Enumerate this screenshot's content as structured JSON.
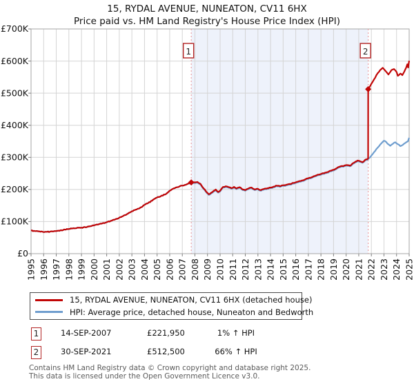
{
  "title": "15, RYDAL AVENUE, NUNEATON, CV11 6HX",
  "subtitle": "Price paid vs. HM Land Registry's House Price Index (HPI)",
  "legend": {
    "items": [
      {
        "label": "15, RYDAL AVENUE, NUNEATON, CV11 6HX (detached house)",
        "color": "#c10505"
      },
      {
        "label": "HPI: Average price, detached house, Nuneaton and Bedworth",
        "color": "#6e9dce"
      }
    ]
  },
  "annotations": [
    {
      "num": "1",
      "date": "14-SEP-2007",
      "price": "£221,950",
      "hpi_change": "1% ↑ HPI"
    },
    {
      "num": "2",
      "date": "30-SEP-2021",
      "price": "£512,500",
      "hpi_change": "66% ↑ HPI"
    }
  ],
  "footer": {
    "line1": "Contains HM Land Registry data © Crown copyright and database right 2025.",
    "line2": "This data is licensed under the Open Government Licence v3.0."
  },
  "chart_data": {
    "type": "line",
    "unit": "GBP thousands",
    "xlim": [
      1995,
      2025
    ],
    "ylim": [
      0,
      700
    ],
    "x_ticks": [
      1995,
      1996,
      1997,
      1998,
      1999,
      2000,
      2001,
      2002,
      2003,
      2004,
      2005,
      2006,
      2007,
      2008,
      2009,
      2010,
      2011,
      2012,
      2013,
      2014,
      2015,
      2016,
      2017,
      2018,
      2019,
      2020,
      2021,
      2022,
      2023,
      2024,
      2025
    ],
    "y_ticks": [
      {
        "value": 0,
        "label": "£0"
      },
      {
        "value": 100,
        "label": "£100K"
      },
      {
        "value": 200,
        "label": "£200K"
      },
      {
        "value": 300,
        "label": "£300K"
      },
      {
        "value": 400,
        "label": "£400K"
      },
      {
        "value": 500,
        "label": "£500K"
      },
      {
        "value": 600,
        "label": "£600K"
      },
      {
        "value": 700,
        "label": "£700K"
      }
    ],
    "shaded_region": {
      "from": 2007.71,
      "to": 2021.75,
      "color": "#eef2fb"
    },
    "colors": {
      "grid": "#d4d4d4",
      "border": "#a6a6a6",
      "tick": "#808080",
      "sale_dash_line": "#e89296"
    },
    "markers": [
      {
        "num": "1",
        "year": 2007.71,
        "value": 221.95
      },
      {
        "num": "2",
        "year": 2021.75,
        "value": 512.5
      }
    ],
    "series": [
      {
        "name": "price-paid-indexed",
        "color": "#c10505",
        "width": 2.2,
        "points": [
          [
            1995.0,
            72
          ],
          [
            1995.3,
            70.5
          ],
          [
            1995.6,
            69.5
          ],
          [
            1995.9,
            68.5
          ],
          [
            1996.2,
            68
          ],
          [
            1996.5,
            68.5
          ],
          [
            1996.8,
            69.5
          ],
          [
            1997.1,
            71
          ],
          [
            1997.4,
            73
          ],
          [
            1997.7,
            75
          ],
          [
            1998.0,
            77
          ],
          [
            1998.3,
            78.5
          ],
          [
            1998.6,
            79.5
          ],
          [
            1999.0,
            81
          ],
          [
            1999.3,
            82.5
          ],
          [
            1999.6,
            84.5
          ],
          [
            2000.0,
            88
          ],
          [
            2000.3,
            90.5
          ],
          [
            2000.6,
            93.5
          ],
          [
            2001.0,
            98
          ],
          [
            2001.3,
            101.5
          ],
          [
            2001.6,
            105.5
          ],
          [
            2002.0,
            112
          ],
          [
            2002.3,
            117
          ],
          [
            2002.6,
            123
          ],
          [
            2003.0,
            132
          ],
          [
            2003.3,
            137
          ],
          [
            2003.6,
            141
          ],
          [
            2004.0,
            152
          ],
          [
            2004.3,
            158
          ],
          [
            2004.6,
            165
          ],
          [
            2005.0,
            175
          ],
          [
            2005.3,
            179
          ],
          [
            2005.6,
            184
          ],
          [
            2005.8,
            189
          ],
          [
            2006.0,
            196
          ],
          [
            2006.2,
            201
          ],
          [
            2006.4,
            204
          ],
          [
            2006.6,
            207
          ],
          [
            2006.8,
            210
          ],
          [
            2007.0,
            212
          ],
          [
            2007.2,
            214
          ],
          [
            2007.45,
            218
          ],
          [
            2007.71,
            221.95
          ],
          [
            2008.0,
            222
          ],
          [
            2008.2,
            223.5
          ],
          [
            2008.45,
            217
          ],
          [
            2008.7,
            203
          ],
          [
            2008.9,
            193
          ],
          [
            2009.1,
            185
          ],
          [
            2009.3,
            190
          ],
          [
            2009.5,
            196
          ],
          [
            2009.65,
            200
          ],
          [
            2009.85,
            192
          ],
          [
            2010.0,
            196
          ],
          [
            2010.2,
            207
          ],
          [
            2010.45,
            210
          ],
          [
            2010.7,
            207
          ],
          [
            2010.9,
            204
          ],
          [
            2011.1,
            208
          ],
          [
            2011.3,
            203
          ],
          [
            2011.55,
            207
          ],
          [
            2011.8,
            200
          ],
          [
            2012.0,
            198
          ],
          [
            2012.25,
            203
          ],
          [
            2012.5,
            206
          ],
          [
            2012.75,
            200
          ],
          [
            2013.0,
            202
          ],
          [
            2013.25,
            198
          ],
          [
            2013.5,
            202
          ],
          [
            2013.75,
            204
          ],
          [
            2014.0,
            206
          ],
          [
            2014.25,
            209
          ],
          [
            2014.5,
            212
          ],
          [
            2014.75,
            210
          ],
          [
            2015.0,
            213
          ],
          [
            2015.5,
            217
          ],
          [
            2016.0,
            222
          ],
          [
            2016.5,
            228
          ],
          [
            2017.0,
            235
          ],
          [
            2017.5,
            242
          ],
          [
            2018.0,
            248
          ],
          [
            2018.5,
            254
          ],
          [
            2019.0,
            261
          ],
          [
            2019.4,
            270
          ],
          [
            2019.7,
            273
          ],
          [
            2020.0,
            276
          ],
          [
            2020.3,
            274
          ],
          [
            2020.6,
            283
          ],
          [
            2020.9,
            290
          ],
          [
            2021.1,
            288
          ],
          [
            2021.3,
            285
          ],
          [
            2021.5,
            292
          ],
          [
            2021.74,
            296
          ],
          [
            2021.75,
            512.5
          ],
          [
            2021.9,
            522
          ],
          [
            2022.1,
            535
          ],
          [
            2022.3,
            548
          ],
          [
            2022.5,
            562
          ],
          [
            2022.7,
            572
          ],
          [
            2022.9,
            579
          ],
          [
            2023.1,
            570
          ],
          [
            2023.35,
            558
          ],
          [
            2023.6,
            572
          ],
          [
            2023.8,
            575
          ],
          [
            2024.0,
            566
          ],
          [
            2024.1,
            554
          ],
          [
            2024.3,
            561
          ],
          [
            2024.45,
            556
          ],
          [
            2024.6,
            566
          ],
          [
            2024.75,
            578
          ],
          [
            2024.85,
            590
          ],
          [
            2024.92,
            580
          ],
          [
            2025.0,
            601
          ]
        ]
      },
      {
        "name": "hpi-average",
        "color": "#6e9dce",
        "width": 2.2,
        "points": [
          [
            1995.0,
            72
          ],
          [
            1995.3,
            70.5
          ],
          [
            1995.6,
            69.5
          ],
          [
            1995.9,
            68.5
          ],
          [
            1996.2,
            68
          ],
          [
            1996.5,
            68.5
          ],
          [
            1996.8,
            69.5
          ],
          [
            1997.1,
            71
          ],
          [
            1997.4,
            73
          ],
          [
            1997.7,
            75
          ],
          [
            1998.0,
            77
          ],
          [
            1998.3,
            78.5
          ],
          [
            1998.6,
            79.5
          ],
          [
            1999.0,
            81
          ],
          [
            1999.3,
            82.5
          ],
          [
            1999.6,
            84.5
          ],
          [
            2000.0,
            88
          ],
          [
            2000.3,
            90.5
          ],
          [
            2000.6,
            93.5
          ],
          [
            2001.0,
            98
          ],
          [
            2001.3,
            101.5
          ],
          [
            2001.6,
            105.5
          ],
          [
            2002.0,
            112
          ],
          [
            2002.3,
            117
          ],
          [
            2002.6,
            123
          ],
          [
            2003.0,
            132
          ],
          [
            2003.3,
            137
          ],
          [
            2003.6,
            141
          ],
          [
            2004.0,
            152
          ],
          [
            2004.3,
            158
          ],
          [
            2004.6,
            165
          ],
          [
            2005.0,
            175
          ],
          [
            2005.3,
            179
          ],
          [
            2005.6,
            184
          ],
          [
            2005.8,
            189
          ],
          [
            2006.0,
            196
          ],
          [
            2006.2,
            201
          ],
          [
            2006.4,
            204
          ],
          [
            2006.6,
            207
          ],
          [
            2006.8,
            210
          ],
          [
            2007.0,
            212
          ],
          [
            2007.2,
            214
          ],
          [
            2007.45,
            218
          ],
          [
            2007.71,
            219.8
          ],
          [
            2008.0,
            220
          ],
          [
            2008.2,
            221.5
          ],
          [
            2008.45,
            215
          ],
          [
            2008.7,
            201
          ],
          [
            2008.9,
            191
          ],
          [
            2009.1,
            183
          ],
          [
            2009.3,
            188
          ],
          [
            2009.5,
            194
          ],
          [
            2009.65,
            198
          ],
          [
            2009.85,
            190
          ],
          [
            2010.0,
            194
          ],
          [
            2010.2,
            205
          ],
          [
            2010.45,
            208
          ],
          [
            2010.7,
            205
          ],
          [
            2010.9,
            202
          ],
          [
            2011.1,
            206
          ],
          [
            2011.3,
            201
          ],
          [
            2011.55,
            205
          ],
          [
            2011.8,
            198
          ],
          [
            2012.0,
            196
          ],
          [
            2012.25,
            201
          ],
          [
            2012.5,
            204
          ],
          [
            2012.75,
            198
          ],
          [
            2013.0,
            200
          ],
          [
            2013.25,
            196
          ],
          [
            2013.5,
            200
          ],
          [
            2013.75,
            202
          ],
          [
            2014.0,
            204
          ],
          [
            2014.25,
            207
          ],
          [
            2014.5,
            210
          ],
          [
            2014.75,
            208
          ],
          [
            2015.0,
            211
          ],
          [
            2015.5,
            215
          ],
          [
            2016.0,
            220
          ],
          [
            2016.5,
            226
          ],
          [
            2017.0,
            233
          ],
          [
            2017.5,
            240
          ],
          [
            2018.0,
            246
          ],
          [
            2018.5,
            252
          ],
          [
            2019.0,
            259
          ],
          [
            2019.4,
            268
          ],
          [
            2019.7,
            271
          ],
          [
            2020.0,
            274
          ],
          [
            2020.3,
            272
          ],
          [
            2020.6,
            281
          ],
          [
            2020.9,
            288
          ],
          [
            2021.1,
            286
          ],
          [
            2021.3,
            283
          ],
          [
            2021.5,
            290
          ],
          [
            2021.74,
            294
          ],
          [
            2021.75,
            296
          ],
          [
            2021.9,
            300
          ],
          [
            2022.1,
            310
          ],
          [
            2022.3,
            320
          ],
          [
            2022.5,
            330
          ],
          [
            2022.7,
            340
          ],
          [
            2022.9,
            348
          ],
          [
            2023.0,
            352
          ],
          [
            2023.15,
            349
          ],
          [
            2023.3,
            342
          ],
          [
            2023.5,
            336
          ],
          [
            2023.7,
            342
          ],
          [
            2023.9,
            347
          ],
          [
            2024.1,
            341
          ],
          [
            2024.3,
            335
          ],
          [
            2024.5,
            339
          ],
          [
            2024.7,
            345
          ],
          [
            2024.9,
            350
          ],
          [
            2025.0,
            361
          ]
        ]
      }
    ]
  }
}
